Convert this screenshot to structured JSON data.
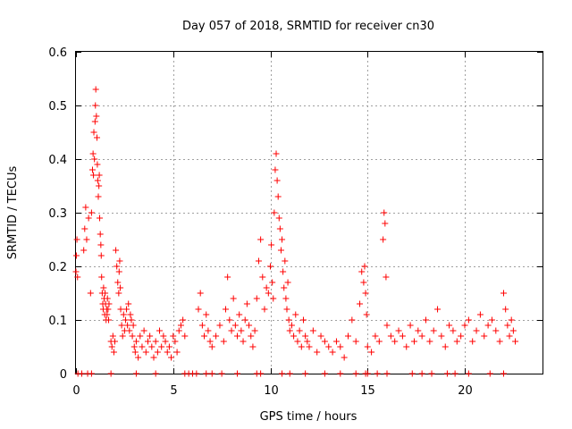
{
  "chart_data": {
    "type": "scatter",
    "title": "Day 057 of 2018, SRMTID for receiver cn30",
    "xlabel": "GPS time / hours",
    "ylabel": "SRMTID / TECUs",
    "xlim": [
      0,
      24
    ],
    "ylim": [
      0,
      0.6
    ],
    "x_ticks": [
      0,
      5,
      10,
      15,
      20
    ],
    "x_tick_labels": [
      "0",
      "5",
      "10",
      "15",
      "20"
    ],
    "y_ticks": [
      0,
      0.1,
      0.2,
      0.3,
      0.4,
      0.5,
      0.6
    ],
    "y_tick_labels": [
      "0",
      "0.1",
      "0.2",
      "0.3",
      "0.4",
      "0.5",
      "0.6"
    ],
    "grid": true,
    "marker": "+",
    "series": [
      {
        "name": "SRMTID",
        "color": "#ff0000",
        "x": [
          0.0,
          0.02,
          0.05,
          0.08,
          0.4,
          0.45,
          0.5,
          0.55,
          0.65,
          0.75,
          0.8,
          0.85,
          0.88,
          0.9,
          0.92,
          0.95,
          0.98,
          1.0,
          1.02,
          1.05,
          1.08,
          1.1,
          1.12,
          1.15,
          1.18,
          1.2,
          1.22,
          1.25,
          1.28,
          1.3,
          1.32,
          1.35,
          1.38,
          1.4,
          1.42,
          1.45,
          1.48,
          1.5,
          1.52,
          1.55,
          1.58,
          1.6,
          1.62,
          1.65,
          1.68,
          1.7,
          1.8,
          1.85,
          1.9,
          1.95,
          2.0,
          2.05,
          2.1,
          2.15,
          2.2,
          2.22,
          2.25,
          2.28,
          2.3,
          2.35,
          2.4,
          2.45,
          2.5,
          2.55,
          2.6,
          2.65,
          2.7,
          2.75,
          2.8,
          2.85,
          2.9,
          2.95,
          3.0,
          3.05,
          3.1,
          3.2,
          3.3,
          3.4,
          3.5,
          3.6,
          3.7,
          3.8,
          3.9,
          4.0,
          4.1,
          4.2,
          4.3,
          4.4,
          4.5,
          4.6,
          4.7,
          4.8,
          4.9,
          5.0,
          5.1,
          5.2,
          5.3,
          5.4,
          5.5,
          5.6,
          6.3,
          6.4,
          6.5,
          6.6,
          6.7,
          6.8,
          6.9,
          7.0,
          7.2,
          7.4,
          7.6,
          7.7,
          7.8,
          7.9,
          8.0,
          8.1,
          8.2,
          8.3,
          8.4,
          8.5,
          8.6,
          8.7,
          8.8,
          8.9,
          9.0,
          9.1,
          9.2,
          9.3,
          9.4,
          9.5,
          9.6,
          9.7,
          9.8,
          9.9,
          10.0,
          10.05,
          10.1,
          10.15,
          10.2,
          10.25,
          10.3,
          10.35,
          10.4,
          10.45,
          10.5,
          10.55,
          10.6,
          10.65,
          10.7,
          10.75,
          10.8,
          10.85,
          10.9,
          10.95,
          11.0,
          11.1,
          11.2,
          11.3,
          11.4,
          11.5,
          11.6,
          11.7,
          11.8,
          11.9,
          12.0,
          12.2,
          12.4,
          12.6,
          12.8,
          13.0,
          13.2,
          13.4,
          13.6,
          13.8,
          14.0,
          14.2,
          14.4,
          14.6,
          14.7,
          14.8,
          14.85,
          14.9,
          14.95,
          15.0,
          15.2,
          15.4,
          15.6,
          15.8,
          15.85,
          15.9,
          15.95,
          16.0,
          16.2,
          16.4,
          16.6,
          16.8,
          17.0,
          17.2,
          17.4,
          17.6,
          17.8,
          18.0,
          18.2,
          18.4,
          18.6,
          18.8,
          19.0,
          19.2,
          19.4,
          19.6,
          19.8,
          20.0,
          20.2,
          20.4,
          20.6,
          20.8,
          21.0,
          21.2,
          21.4,
          21.6,
          21.8,
          22.0,
          22.1,
          22.2,
          22.3,
          22.4,
          22.5,
          22.6
        ],
        "y": [
          0.19,
          0.22,
          0.25,
          0.18,
          0.23,
          0.27,
          0.31,
          0.25,
          0.29,
          0.15,
          0.3,
          0.38,
          0.41,
          0.37,
          0.45,
          0.4,
          0.47,
          0.5,
          0.53,
          0.48,
          0.44,
          0.39,
          0.36,
          0.33,
          0.35,
          0.37,
          0.29,
          0.26,
          0.24,
          0.22,
          0.18,
          0.15,
          0.13,
          0.12,
          0.16,
          0.14,
          0.11,
          0.15,
          0.13,
          0.1,
          0.12,
          0.11,
          0.14,
          0.12,
          0.1,
          0.13,
          0.06,
          0.05,
          0.07,
          0.04,
          0.06,
          0.23,
          0.2,
          0.17,
          0.15,
          0.19,
          0.21,
          0.16,
          0.12,
          0.09,
          0.07,
          0.11,
          0.08,
          0.1,
          0.12,
          0.09,
          0.13,
          0.08,
          0.11,
          0.1,
          0.07,
          0.09,
          0.05,
          0.04,
          0.06,
          0.03,
          0.07,
          0.05,
          0.08,
          0.04,
          0.06,
          0.07,
          0.05,
          0.03,
          0.06,
          0.04,
          0.08,
          0.05,
          0.07,
          0.06,
          0.04,
          0.05,
          0.03,
          0.07,
          0.06,
          0.04,
          0.08,
          0.09,
          0.1,
          0.07,
          0.12,
          0.15,
          0.09,
          0.07,
          0.11,
          0.08,
          0.06,
          0.05,
          0.07,
          0.09,
          0.06,
          0.12,
          0.18,
          0.1,
          0.08,
          0.14,
          0.09,
          0.07,
          0.11,
          0.08,
          0.06,
          0.1,
          0.13,
          0.09,
          0.07,
          0.05,
          0.08,
          0.14,
          0.21,
          0.25,
          0.18,
          0.12,
          0.16,
          0.15,
          0.2,
          0.24,
          0.17,
          0.14,
          0.3,
          0.38,
          0.41,
          0.36,
          0.33,
          0.29,
          0.27,
          0.23,
          0.25,
          0.19,
          0.16,
          0.21,
          0.14,
          0.12,
          0.17,
          0.1,
          0.08,
          0.09,
          0.07,
          0.11,
          0.06,
          0.08,
          0.05,
          0.1,
          0.07,
          0.06,
          0.05,
          0.08,
          0.04,
          0.07,
          0.06,
          0.05,
          0.04,
          0.06,
          0.05,
          0.03,
          0.07,
          0.1,
          0.06,
          0.13,
          0.19,
          0.17,
          0.2,
          0.15,
          0.11,
          0.05,
          0.04,
          0.07,
          0.06,
          0.25,
          0.3,
          0.28,
          0.18,
          0.09,
          0.07,
          0.06,
          0.08,
          0.07,
          0.05,
          0.09,
          0.06,
          0.08,
          0.07,
          0.1,
          0.06,
          0.08,
          0.12,
          0.07,
          0.05,
          0.09,
          0.08,
          0.06,
          0.07,
          0.09,
          0.1,
          0.06,
          0.08,
          0.11,
          0.07,
          0.09,
          0.1,
          0.08,
          0.06,
          0.15,
          0.12,
          0.09,
          0.07,
          0.1,
          0.08,
          0.06
        ]
      }
    ],
    "axis_band_x": [
      0.1,
      0.3,
      0.6,
      0.8,
      1.8,
      3.1,
      4.1,
      5.6,
      5.8,
      6.0,
      6.2,
      6.7,
      7.0,
      7.5,
      8.3,
      9.3,
      9.5,
      10.6,
      11.0,
      11.8,
      12.8,
      13.6,
      14.4,
      14.9,
      15.0,
      15.5,
      16.0,
      17.3,
      17.8,
      18.3,
      19.1,
      19.5,
      20.2,
      21.3,
      22.0
    ]
  }
}
